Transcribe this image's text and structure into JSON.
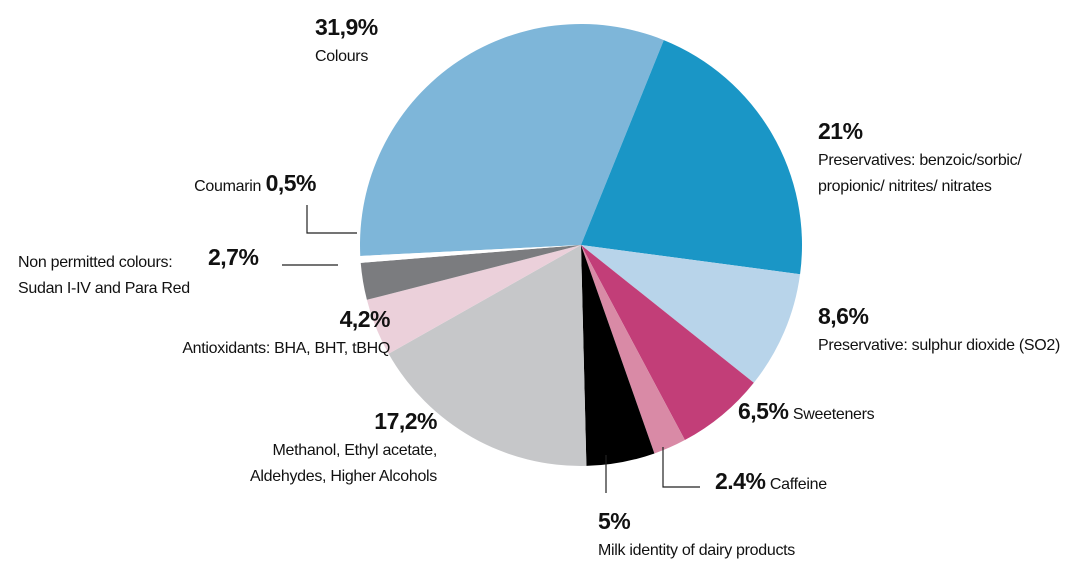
{
  "chart_data": {
    "type": "pie",
    "categories": [
      "Colours",
      "Preservatives: benzoic/sorbic/\npropionic/ nitrites/ nitrates",
      "Preservative: sulphur dioxide (SO2)",
      "Sweeteners",
      "Caffeine",
      "Milk identity of dairy products",
      "Methanol, Ethyl acetate,\nAldehydes, Higher Alcohols",
      "Antioxidants: BHA, BHT, tBHQ",
      "Non permitted colours:\nSudan I-IV and Para Red",
      "Coumarin"
    ],
    "values": [
      31.9,
      21,
      8.6,
      6.5,
      2.4,
      5,
      17.2,
      4.2,
      2.7,
      0.5
    ],
    "value_labels": [
      "31,9%",
      "21%",
      "8,6%",
      "6,5%",
      "2.4%",
      "5%",
      "17,2%",
      "4,2%",
      "2,7%",
      "0,5%"
    ],
    "colors": [
      "#7eb6d9",
      "#1a96c6",
      "#b8d4ea",
      "#c23e78",
      "#d98aa6",
      "#000000",
      "#c6c7c9",
      "#ebd0da",
      "#7b7c7f",
      "#ffffff"
    ]
  }
}
